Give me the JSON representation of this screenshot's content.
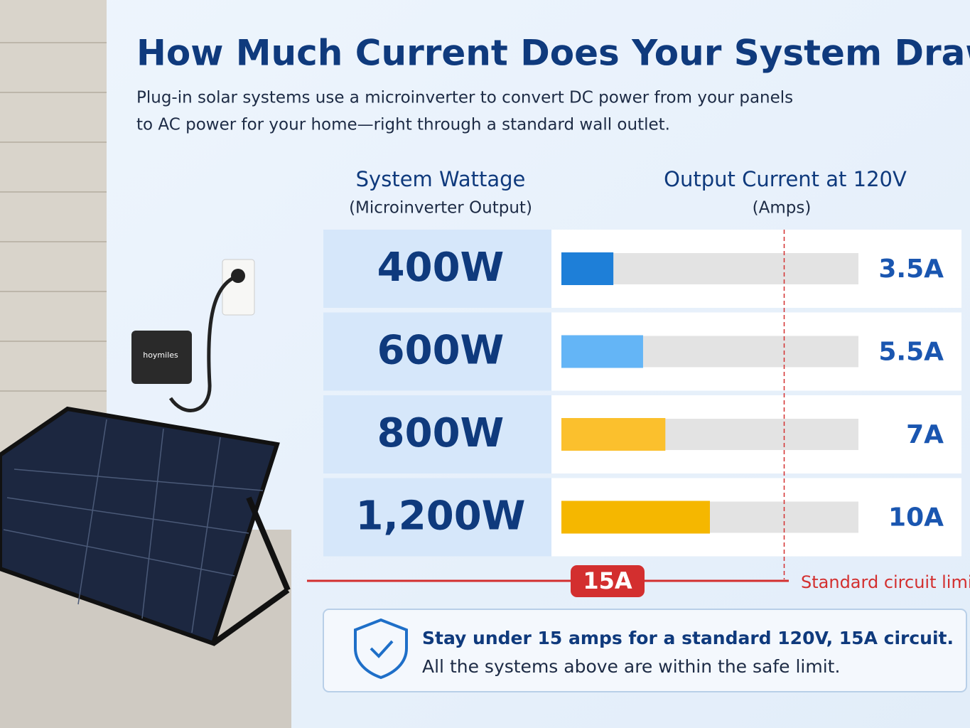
{
  "chart_data": {
    "type": "bar",
    "orientation": "horizontal",
    "title": "How Much Current Does Your System Draw?",
    "subtitle": [
      "Plug-in solar systems use a microinverter to convert DC power from your panels",
      "to AC power for your home—right through a standard wall outlet."
    ],
    "category_header": "System Wattage",
    "category_subheader": "(Microinverter Output)",
    "value_header": "Output Current at 120V",
    "value_subheader": "(Amps)",
    "categories": [
      "400W",
      "600W",
      "800W",
      "1,200W"
    ],
    "values": [
      3.5,
      5.5,
      7,
      10
    ],
    "value_labels": [
      "3.5A",
      "5.5A",
      "7A",
      "10A"
    ],
    "colors": [
      "#1e7fd8",
      "#64b5f6",
      "#fbc02d",
      "#f5b700"
    ],
    "xlim": [
      0,
      20
    ],
    "limit": {
      "value": 15,
      "label": "15A"
    },
    "limit_text": "Standard circuit limit",
    "note": [
      "Stay under 15 amps for a standard 120V, 15A circuit.",
      "All the systems above are within the safe limit."
    ],
    "illustration_label": "hoymiles"
  }
}
